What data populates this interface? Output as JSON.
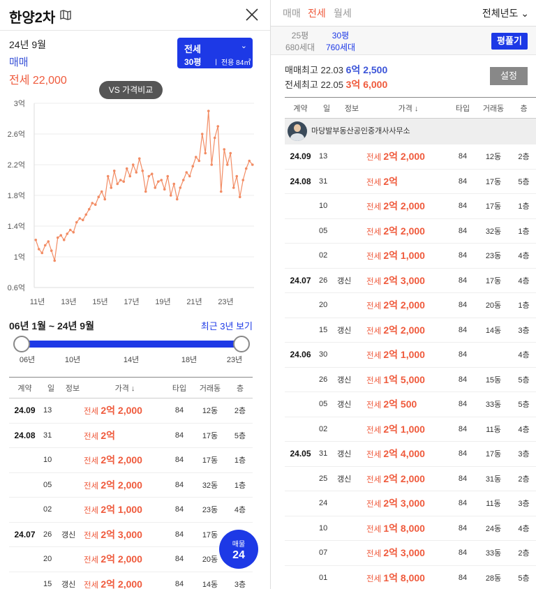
{
  "left": {
    "title": "한양2차",
    "date": "24년 9월",
    "trade_type": "매매",
    "jeonse_price": "전세 22,000",
    "selector": {
      "type": "전세",
      "size": "30평",
      "area": "전용 84㎡"
    },
    "vs_button": "VS 가격비교",
    "range_text": "06년 1월 ~ 24년 9월",
    "recent_link": "최근 3년 보기",
    "slider_ticks": [
      "06년",
      "10년",
      "14년",
      "18년",
      "23년"
    ],
    "fab": {
      "label": "매물",
      "count": "24"
    }
  },
  "chart_data": {
    "type": "line",
    "ylim": [
      0.6,
      3.0
    ],
    "y_ticks": [
      "3억",
      "2.6억",
      "2.2억",
      "1.8억",
      "1.4억",
      "1억",
      "0.6억"
    ],
    "x_ticks": [
      "11년",
      "13년",
      "15년",
      "17년",
      "19년",
      "21년",
      "23년"
    ],
    "xlim": [
      2010.8,
      2024.8
    ],
    "series": [
      {
        "color": "#f28c64",
        "x": [
          2010.9,
          2011.1,
          2011.3,
          2011.5,
          2011.7,
          2011.9,
          2012.1,
          2012.3,
          2012.5,
          2012.7,
          2012.9,
          2013.1,
          2013.3,
          2013.5,
          2013.7,
          2013.9,
          2014.1,
          2014.3,
          2014.5,
          2014.7,
          2014.9,
          2015.1,
          2015.3,
          2015.5,
          2015.7,
          2015.9,
          2016.1,
          2016.3,
          2016.5,
          2016.7,
          2016.9,
          2017.1,
          2017.3,
          2017.5,
          2017.7,
          2017.9,
          2018.1,
          2018.3,
          2018.5,
          2018.7,
          2018.9,
          2019.1,
          2019.3,
          2019.5,
          2019.7,
          2019.9,
          2020.1,
          2020.3,
          2020.5,
          2020.7,
          2020.9,
          2021.1,
          2021.3,
          2021.5,
          2021.7,
          2021.9,
          2022.1,
          2022.3,
          2022.5,
          2022.7,
          2022.9,
          2023.1,
          2023.3,
          2023.5,
          2023.7,
          2023.9,
          2024.1,
          2024.3,
          2024.5,
          2024.7
        ],
        "y": [
          1.22,
          1.1,
          1.05,
          1.15,
          1.2,
          1.08,
          0.95,
          1.25,
          1.28,
          1.22,
          1.3,
          1.35,
          1.32,
          1.45,
          1.5,
          1.48,
          1.55,
          1.62,
          1.7,
          1.68,
          1.78,
          1.85,
          1.75,
          2.05,
          1.9,
          2.12,
          1.95,
          2.0,
          1.98,
          2.15,
          2.05,
          2.2,
          2.1,
          2.28,
          2.12,
          1.85,
          2.05,
          2.08,
          1.9,
          1.98,
          2.0,
          1.88,
          2.05,
          1.8,
          1.95,
          1.75,
          1.9,
          2.0,
          2.1,
          2.05,
          2.18,
          2.3,
          2.25,
          2.6,
          2.35,
          2.9,
          2.2,
          2.55,
          2.7,
          1.85,
          2.4,
          2.2,
          2.35,
          1.9,
          2.05,
          1.78,
          2.0,
          2.15,
          2.25,
          2.2
        ]
      }
    ]
  },
  "right": {
    "tabs": [
      "매매",
      "전세",
      "월세"
    ],
    "active_tab": 1,
    "year_select": "전체년도",
    "sizes": [
      {
        "pyeong": "25평",
        "units": "680세대"
      },
      {
        "pyeong": "30평",
        "units": "760세대"
      }
    ],
    "pyeong_button": "평풀기",
    "max_sale": {
      "label": "매매최고",
      "date": "22.03",
      "price": "6억 2,500"
    },
    "max_jeonse": {
      "label": "전세최고",
      "date": "22.05",
      "price": "3억 6,000"
    },
    "settings_button": "설정",
    "agency": "마당발부동산공인중개사사무소"
  },
  "table": {
    "headers": [
      "계약",
      "일",
      "정보",
      "가격 ↓",
      "타입",
      "거래동",
      "층"
    ],
    "rows": [
      {
        "ym": "24.09",
        "day": "13",
        "info": "",
        "kind": "전세",
        "price": "2억 2,000",
        "type": "84",
        "dong": "12동",
        "floor": "2층"
      },
      {
        "ym": "24.08",
        "day": "31",
        "info": "",
        "kind": "전세",
        "price": "2억",
        "type": "84",
        "dong": "17동",
        "floor": "5층"
      },
      {
        "ym": "",
        "day": "10",
        "info": "",
        "kind": "전세",
        "price": "2억 2,000",
        "type": "84",
        "dong": "17동",
        "floor": "1층"
      },
      {
        "ym": "",
        "day": "05",
        "info": "",
        "kind": "전세",
        "price": "2억 2,000",
        "type": "84",
        "dong": "32동",
        "floor": "1층"
      },
      {
        "ym": "",
        "day": "02",
        "info": "",
        "kind": "전세",
        "price": "2억 1,000",
        "type": "84",
        "dong": "23동",
        "floor": "4층"
      },
      {
        "ym": "24.07",
        "day": "26",
        "info": "갱신",
        "kind": "전세",
        "price": "2억 3,000",
        "type": "84",
        "dong": "17동",
        "floor": "4층"
      },
      {
        "ym": "",
        "day": "20",
        "info": "",
        "kind": "전세",
        "price": "2억 2,000",
        "type": "84",
        "dong": "20동",
        "floor": "1층"
      },
      {
        "ym": "",
        "day": "15",
        "info": "갱신",
        "kind": "전세",
        "price": "2억 2,000",
        "type": "84",
        "dong": "14동",
        "floor": "3층"
      },
      {
        "ym": "24.06",
        "day": "30",
        "info": "",
        "kind": "전세",
        "price": "2억 1,000",
        "type": "84",
        "dong": "",
        "floor": "4층"
      },
      {
        "ym": "",
        "day": "26",
        "info": "갱신",
        "kind": "전세",
        "price": "1억 5,000",
        "type": "84",
        "dong": "15동",
        "floor": "5층"
      },
      {
        "ym": "",
        "day": "05",
        "info": "갱신",
        "kind": "전세",
        "price": "2억 500",
        "type": "84",
        "dong": "33동",
        "floor": "5층"
      },
      {
        "ym": "",
        "day": "02",
        "info": "",
        "kind": "전세",
        "price": "2억 1,000",
        "type": "84",
        "dong": "11동",
        "floor": "4층"
      },
      {
        "ym": "24.05",
        "day": "31",
        "info": "갱신",
        "kind": "전세",
        "price": "2억 4,000",
        "type": "84",
        "dong": "17동",
        "floor": "3층"
      },
      {
        "ym": "",
        "day": "25",
        "info": "갱신",
        "kind": "전세",
        "price": "2억 2,000",
        "type": "84",
        "dong": "31동",
        "floor": "2층"
      },
      {
        "ym": "",
        "day": "24",
        "info": "",
        "kind": "전세",
        "price": "2억 3,000",
        "type": "84",
        "dong": "11동",
        "floor": "3층"
      },
      {
        "ym": "",
        "day": "10",
        "info": "",
        "kind": "전세",
        "price": "1억 8,000",
        "type": "84",
        "dong": "24동",
        "floor": "4층"
      },
      {
        "ym": "",
        "day": "07",
        "info": "",
        "kind": "전세",
        "price": "2억 3,000",
        "type": "84",
        "dong": "33동",
        "floor": "2층"
      },
      {
        "ym": "",
        "day": "01",
        "info": "",
        "kind": "전세",
        "price": "1억 8,000",
        "type": "84",
        "dong": "28동",
        "floor": "5층"
      }
    ]
  }
}
